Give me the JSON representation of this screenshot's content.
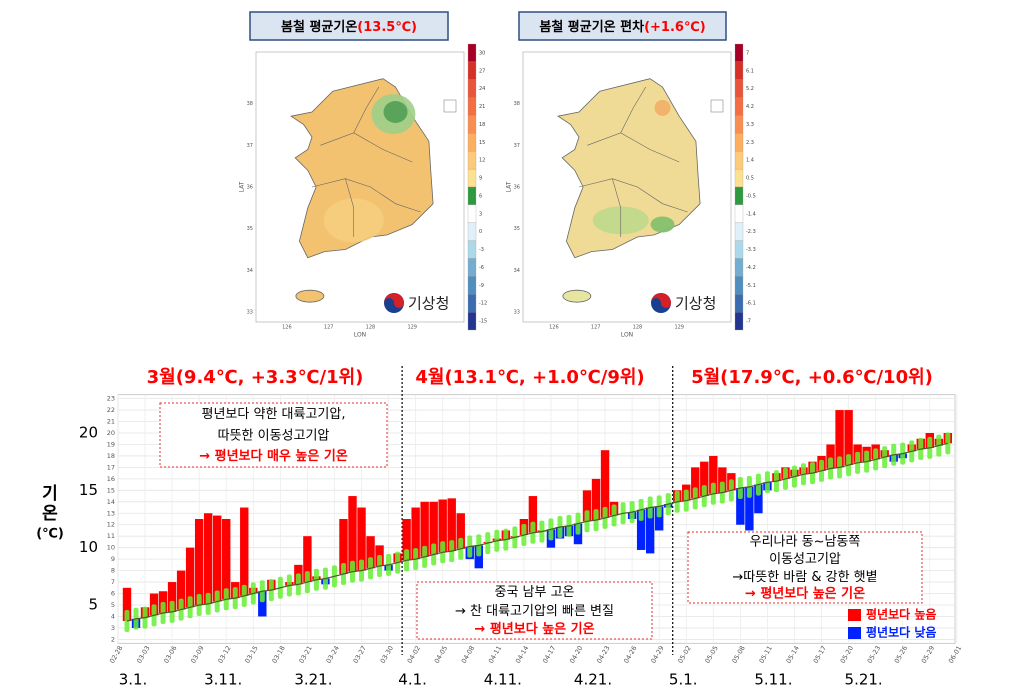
{
  "maps": [
    {
      "title": "봄철 평균기온",
      "title_value": "(13.5℃)",
      "colorbar": [
        "30",
        "27",
        "24",
        "21",
        "18",
        "15",
        "12",
        "9",
        "6",
        "3",
        "0",
        "-3",
        "-6",
        "-9",
        "-12",
        "-15"
      ],
      "lat_ticks": [
        "33",
        "34",
        "35",
        "36",
        "37",
        "38"
      ],
      "lon_ticks": [
        "126",
        "127",
        "128",
        "129"
      ],
      "xlabel": "LON",
      "ylabel": "LAT",
      "logo": "기상청"
    },
    {
      "title": "봄철 평균기온 편차",
      "title_value": "(+1.6℃)",
      "colorbar": [
        "7",
        "6.1",
        "5.2",
        "4.2",
        "3.3",
        "2.3",
        "1.4",
        "0.5",
        "-0.5",
        "-1.4",
        "-2.3",
        "-3.3",
        "-4.2",
        "-5.1",
        "-6.1",
        "-7"
      ],
      "lat_ticks": [
        "33",
        "34",
        "35",
        "36",
        "37",
        "38"
      ],
      "lon_ticks": [
        "126",
        "127",
        "128",
        "129"
      ],
      "xlabel": "LON",
      "ylabel": "LAT",
      "logo": "기상청"
    }
  ],
  "chart_data": {
    "type": "bar",
    "month_titles": [
      "3월(9.4℃, +3.3℃/1위)",
      "4월(13.1℃, +1.0℃/9위)",
      "5월(17.9℃, +0.6℃/10위)"
    ],
    "ylabel": [
      "기",
      "온",
      "(℃)"
    ],
    "ylim": [
      2,
      23
    ],
    "yticks": [
      2,
      3,
      4,
      5,
      6,
      7,
      8,
      9,
      10,
      11,
      12,
      13,
      14,
      15,
      16,
      17,
      18,
      19,
      20,
      21,
      22,
      23
    ],
    "major_yticks": [
      5,
      10,
      15,
      20
    ],
    "major_labels": [
      "3.1.",
      "3.11.",
      "3.21.",
      "4.1.",
      "4.11.",
      "4.21.",
      "5.1.",
      "5.11.",
      "5.21."
    ],
    "date_ticks": [
      "02-28",
      "03-03",
      "03-06",
      "03-09",
      "03-12",
      "03-15",
      "03-18",
      "03-21",
      "03-24",
      "03-27",
      "03-30",
      "04-02",
      "04-05",
      "04-08",
      "04-11",
      "04-14",
      "04-17",
      "04-20",
      "04-23",
      "04-26",
      "04-29",
      "05-02",
      "05-05",
      "05-08",
      "05-11",
      "05-14",
      "05-17",
      "05-20",
      "05-23",
      "05-26",
      "05-29",
      "06-01"
    ],
    "values": [
      6.5,
      3,
      4.8,
      6,
      6.2,
      7,
      8,
      10,
      12.5,
      13,
      12.8,
      12.5,
      7,
      13.5,
      6.5,
      4,
      7.2,
      6.5,
      7,
      8.5,
      11,
      7.5,
      6.8,
      7.5,
      12.5,
      14.5,
      13.5,
      11,
      10.2,
      8,
      9.5,
      12.5,
      13.5,
      14,
      14,
      14.2,
      14.3,
      13,
      9,
      8.2,
      10.5,
      10.8,
      11.5,
      11,
      12.5,
      14.5,
      11.5,
      10,
      10.8,
      11,
      10.3,
      15,
      16,
      18.5,
      14,
      13,
      12.5,
      9.8,
      9.5,
      11.5,
      13.5,
      15,
      15.5,
      17,
      17.5,
      18,
      17,
      16.5,
      12,
      11.5,
      13,
      15,
      16.5,
      17,
      16.8,
      17,
      17.5,
      18,
      19,
      22,
      22,
      19,
      18.8,
      19,
      18.5,
      17.5,
      17.8,
      19,
      19.5,
      20,
      19.5,
      20
    ],
    "normal": [
      3.6,
      3.8,
      3.9,
      4.1,
      4.3,
      4.4,
      4.6,
      4.8,
      5.0,
      5.1,
      5.3,
      5.5,
      5.6,
      5.8,
      6.0,
      6.2,
      6.3,
      6.5,
      6.7,
      6.8,
      7.0,
      7.2,
      7.3,
      7.5,
      7.7,
      7.9,
      8.0,
      8.2,
      8.4,
      8.5,
      8.7,
      8.9,
      9.0,
      9.2,
      9.4,
      9.6,
      9.7,
      9.9,
      10.1,
      10.2,
      10.4,
      10.6,
      10.7,
      10.9,
      11.1,
      11.3,
      11.4,
      11.6,
      11.8,
      11.9,
      12.1,
      12.3,
      12.4,
      12.6,
      12.8,
      13.0,
      13.1,
      13.3,
      13.5,
      13.6,
      13.8,
      14.0,
      14.1,
      14.3,
      14.5,
      14.7,
      14.8,
      15.0,
      15.2,
      15.3,
      15.5,
      15.7,
      15.8,
      16.0,
      16.2,
      16.4,
      16.5,
      16.7,
      16.9,
      17.0,
      17.2,
      17.4,
      17.5,
      17.7,
      17.9,
      18.1,
      18.2,
      18.4,
      18.6,
      18.7,
      18.9,
      19.1
    ],
    "normal_color": "#66ee33",
    "legend": [
      {
        "name": "평년보다 높음",
        "color": "#ff0000"
      },
      {
        "name": "평년보다 낮음",
        "color": "#0022ff"
      }
    ],
    "annotations": [
      {
        "lines": [
          "평년보다 약한 대륙고기압,",
          "따뜻한 이동성고기압"
        ],
        "highlight": "→ 평년보다 매우 높은 기온"
      },
      {
        "lines": [
          "중국 남부 고온",
          "→ 찬 대륙고기압의 빠른 변질"
        ],
        "highlight": "→ 평년보다 높은 기온"
      },
      {
        "lines": [
          "우리나라 동~남동쪽",
          "이동성고기압",
          "→따뜻한 바람 & 강한 햇볕"
        ],
        "highlight": "→ 평년보다 높은 기온"
      }
    ]
  }
}
